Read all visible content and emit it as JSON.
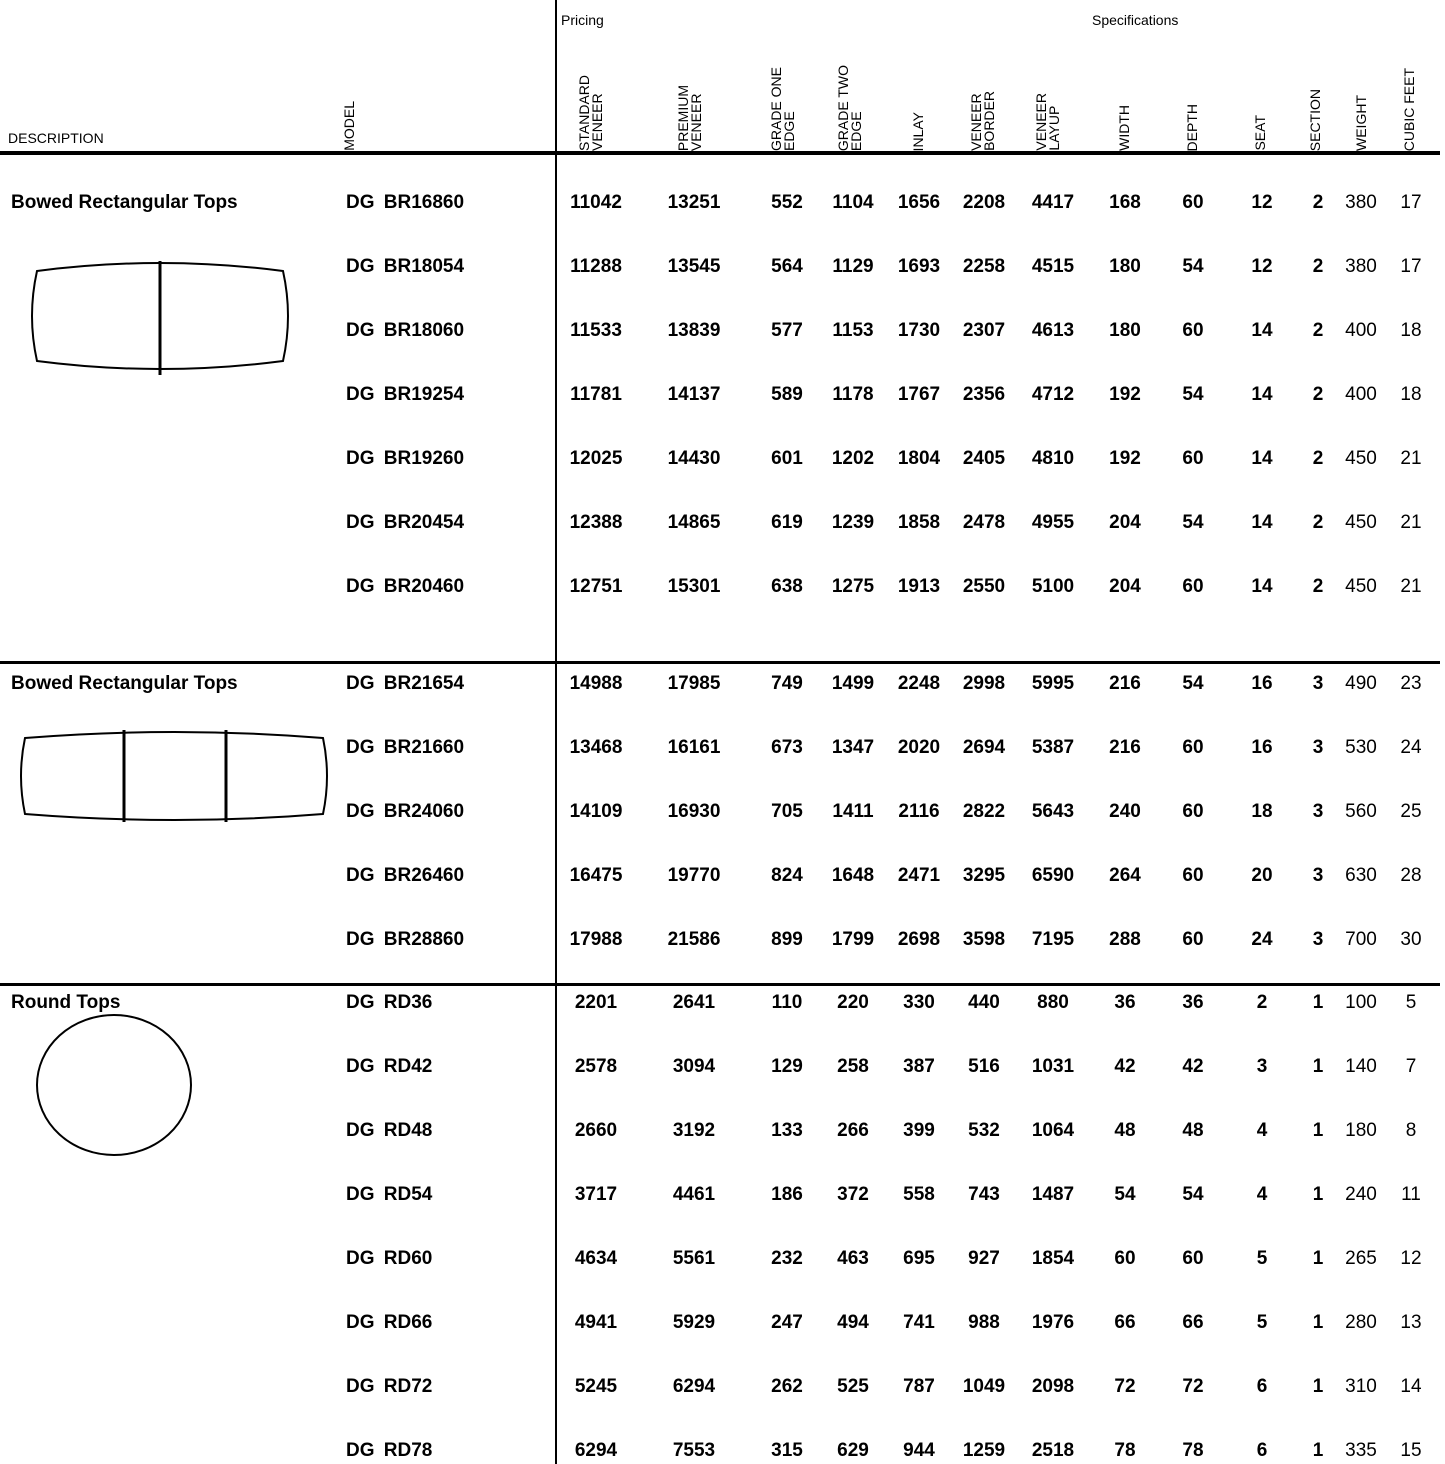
{
  "header": {
    "description_label": "DESCRIPTION",
    "model_label": "MODEL",
    "pricing_label": "Pricing",
    "specifications_label": "Specifications",
    "columns": [
      [
        "STANDARD",
        "VENEER"
      ],
      [
        "PREMIUM",
        "VENEER"
      ],
      [
        "GRADE ONE",
        "EDGE"
      ],
      [
        "GRADE TWO",
        "EDGE"
      ],
      [
        "INLAY"
      ],
      [
        "VENEER",
        "BORDER"
      ],
      [
        "VENEER",
        "LAYUP"
      ],
      [
        "WIDTH"
      ],
      [
        "DEPTH"
      ],
      [
        "SEAT"
      ],
      [
        "SECTION"
      ],
      [
        "WEIGHT"
      ],
      [
        "CUBIC FEET"
      ]
    ]
  },
  "sections": [
    {
      "title": "Bowed Rectangular Tops",
      "shape": "bowed-rectangle-2-section",
      "rows": [
        {
          "model": "DG BR16860",
          "values": [
            "11042",
            "13251",
            "552",
            "1104",
            "1656",
            "2208",
            "4417",
            "168",
            "60",
            "12",
            "2",
            "380",
            "17"
          ]
        },
        {
          "model": "DG BR18054",
          "values": [
            "11288",
            "13545",
            "564",
            "1129",
            "1693",
            "2258",
            "4515",
            "180",
            "54",
            "12",
            "2",
            "380",
            "17"
          ]
        },
        {
          "model": "DG BR18060",
          "values": [
            "11533",
            "13839",
            "577",
            "1153",
            "1730",
            "2307",
            "4613",
            "180",
            "60",
            "14",
            "2",
            "400",
            "18"
          ]
        },
        {
          "model": "DG BR19254",
          "values": [
            "11781",
            "14137",
            "589",
            "1178",
            "1767",
            "2356",
            "4712",
            "192",
            "54",
            "14",
            "2",
            "400",
            "18"
          ]
        },
        {
          "model": "DG BR19260",
          "values": [
            "12025",
            "14430",
            "601",
            "1202",
            "1804",
            "2405",
            "4810",
            "192",
            "60",
            "14",
            "2",
            "450",
            "21"
          ]
        },
        {
          "model": "DG BR20454",
          "values": [
            "12388",
            "14865",
            "619",
            "1239",
            "1858",
            "2478",
            "4955",
            "204",
            "54",
            "14",
            "2",
            "450",
            "21"
          ]
        },
        {
          "model": "DG BR20460",
          "values": [
            "12751",
            "15301",
            "638",
            "1275",
            "1913",
            "2550",
            "5100",
            "204",
            "60",
            "14",
            "2",
            "450",
            "21"
          ]
        }
      ]
    },
    {
      "title": "Bowed Rectangular Tops",
      "shape": "bowed-rectangle-3-section",
      "rows": [
        {
          "model": "DG BR21654",
          "values": [
            "14988",
            "17985",
            "749",
            "1499",
            "2248",
            "2998",
            "5995",
            "216",
            "54",
            "16",
            "3",
            "490",
            "23"
          ]
        },
        {
          "model": "DG BR21660",
          "values": [
            "13468",
            "16161",
            "673",
            "1347",
            "2020",
            "2694",
            "5387",
            "216",
            "60",
            "16",
            "3",
            "530",
            "24"
          ]
        },
        {
          "model": "DG BR24060",
          "values": [
            "14109",
            "16930",
            "705",
            "1411",
            "2116",
            "2822",
            "5643",
            "240",
            "60",
            "18",
            "3",
            "560",
            "25"
          ]
        },
        {
          "model": "DG BR26460",
          "values": [
            "16475",
            "19770",
            "824",
            "1648",
            "2471",
            "3295",
            "6590",
            "264",
            "60",
            "20",
            "3",
            "630",
            "28"
          ]
        },
        {
          "model": "DG BR28860",
          "values": [
            "17988",
            "21586",
            "899",
            "1799",
            "2698",
            "3598",
            "7195",
            "288",
            "60",
            "24",
            "3",
            "700",
            "30"
          ]
        }
      ]
    },
    {
      "title": "Round Tops",
      "shape": "circle",
      "rows": [
        {
          "model": "DG RD36",
          "values": [
            "2201",
            "2641",
            "110",
            "220",
            "330",
            "440",
            "880",
            "36",
            "36",
            "2",
            "1",
            "100",
            "5"
          ]
        },
        {
          "model": "DG RD42",
          "values": [
            "2578",
            "3094",
            "129",
            "258",
            "387",
            "516",
            "1031",
            "42",
            "42",
            "3",
            "1",
            "140",
            "7"
          ]
        },
        {
          "model": "DG RD48",
          "values": [
            "2660",
            "3192",
            "133",
            "266",
            "399",
            "532",
            "1064",
            "48",
            "48",
            "4",
            "1",
            "180",
            "8"
          ]
        },
        {
          "model": "DG RD54",
          "values": [
            "3717",
            "4461",
            "186",
            "372",
            "558",
            "743",
            "1487",
            "54",
            "54",
            "4",
            "1",
            "240",
            "11"
          ]
        },
        {
          "model": "DG RD60",
          "values": [
            "4634",
            "5561",
            "232",
            "463",
            "695",
            "927",
            "1854",
            "60",
            "60",
            "5",
            "1",
            "265",
            "12"
          ]
        },
        {
          "model": "DG RD66",
          "values": [
            "4941",
            "5929",
            "247",
            "494",
            "741",
            "988",
            "1976",
            "66",
            "66",
            "5",
            "1",
            "280",
            "13"
          ]
        },
        {
          "model": "DG RD72",
          "values": [
            "5245",
            "6294",
            "262",
            "525",
            "787",
            "1049",
            "2098",
            "72",
            "72",
            "6",
            "1",
            "310",
            "14"
          ]
        },
        {
          "model": "DG RD78",
          "values": [
            "6294",
            "7553",
            "315",
            "629",
            "944",
            "1259",
            "2518",
            "78",
            "78",
            "6",
            "1",
            "335",
            "15"
          ]
        }
      ]
    }
  ]
}
